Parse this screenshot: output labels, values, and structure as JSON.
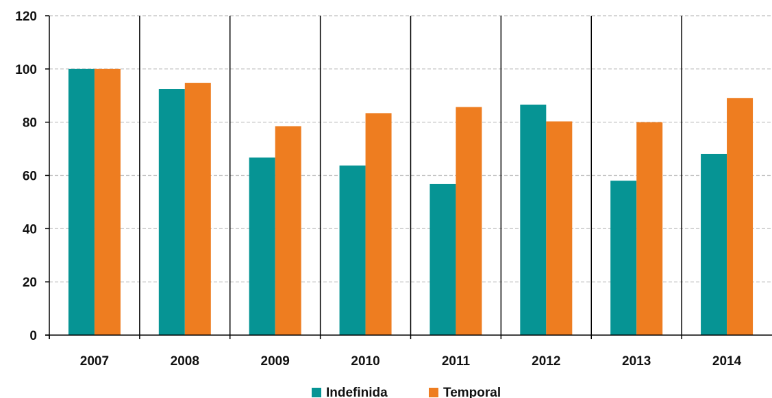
{
  "chart_data": {
    "type": "bar",
    "categories": [
      "2007",
      "2008",
      "2009",
      "2010",
      "2011",
      "2012",
      "2013",
      "2014"
    ],
    "series": [
      {
        "name": "Indefinida",
        "color": "#069494",
        "values": [
          100,
          92.5,
          66.7,
          63.7,
          56.8,
          86.6,
          58.0,
          68.1
        ]
      },
      {
        "name": "Temporal",
        "color": "#ee7d20",
        "values": [
          100,
          94.8,
          78.5,
          83.4,
          85.7,
          80.3,
          80.0,
          89.1
        ]
      }
    ],
    "title": "",
    "xlabel": "",
    "ylabel": "",
    "ylim": [
      0,
      120
    ],
    "yticks": [
      "0",
      "20",
      "40",
      "60",
      "80",
      "100",
      "120"
    ],
    "grid": true,
    "legend_position": "bottom"
  }
}
